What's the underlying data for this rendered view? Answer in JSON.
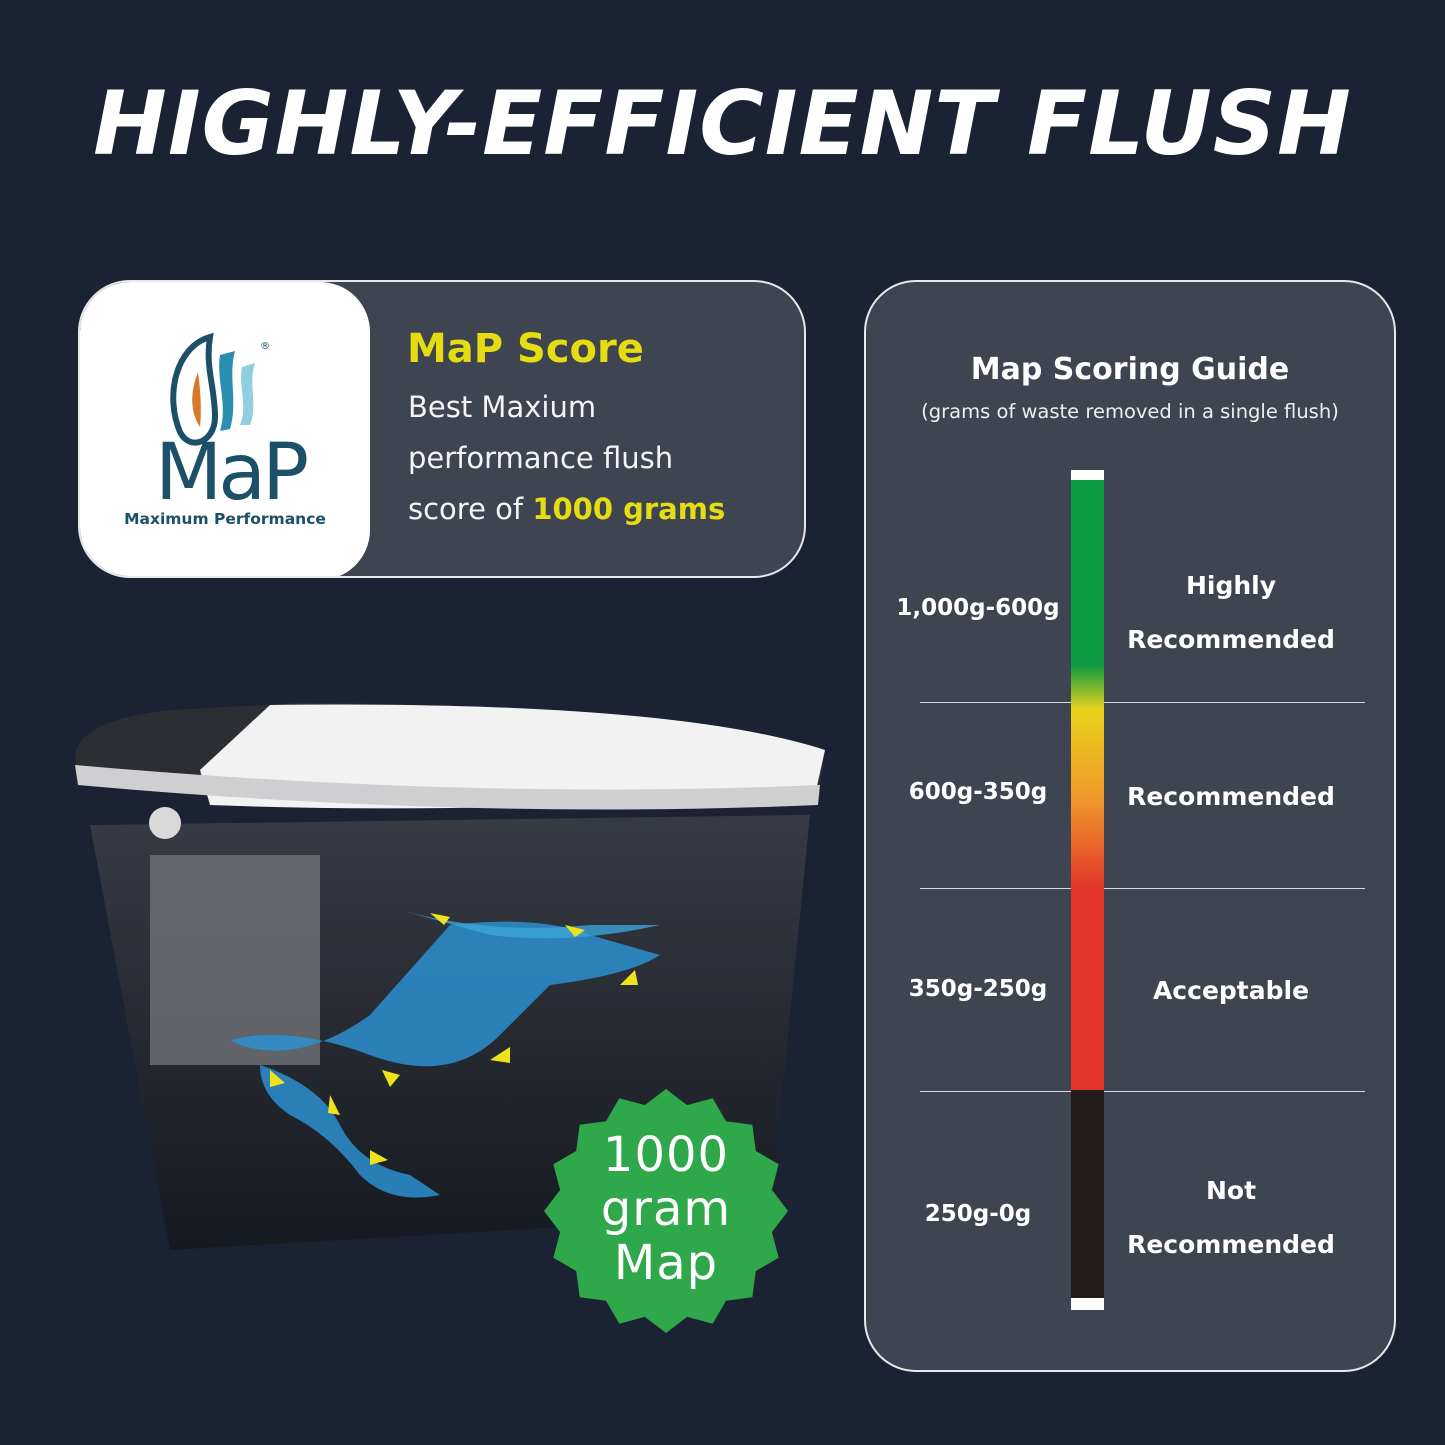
{
  "title": "HIGHLY-EFFICIENT FLUSH",
  "map_card": {
    "logo_text": "MaP",
    "logo_tagline": "Maximum Performance",
    "logo_mark": "®",
    "heading": "MaP Score",
    "line1": "Best Maxium",
    "line2": "performance flush",
    "line3_prefix": "score of ",
    "line3_highlight": "1000 grams"
  },
  "guide": {
    "title": "Map Scoring Guide",
    "subtitle": "(grams of waste removed in a single flush)",
    "rows": [
      {
        "range": "1,000g-600g",
        "label_1": "Highly",
        "label_2": "Recommended",
        "color": "#0e9a43"
      },
      {
        "range": "600g-350g",
        "label_1": "Recommended",
        "label_2": "",
        "color": "#f0972a"
      },
      {
        "range": "350g-250g",
        "label_1": "Acceptable",
        "label_2": "",
        "color": "#e2342a"
      },
      {
        "range": "250g-0g",
        "label_1": "Not",
        "label_2": "Recommended",
        "color": "#231c1c"
      }
    ]
  },
  "badge": {
    "line1": "1000",
    "line2": "gram",
    "line3": "Map",
    "color": "#2ea84a"
  },
  "colors": {
    "background": "#1b2233",
    "card": "#3f4451",
    "highlight": "#e6dc12"
  }
}
